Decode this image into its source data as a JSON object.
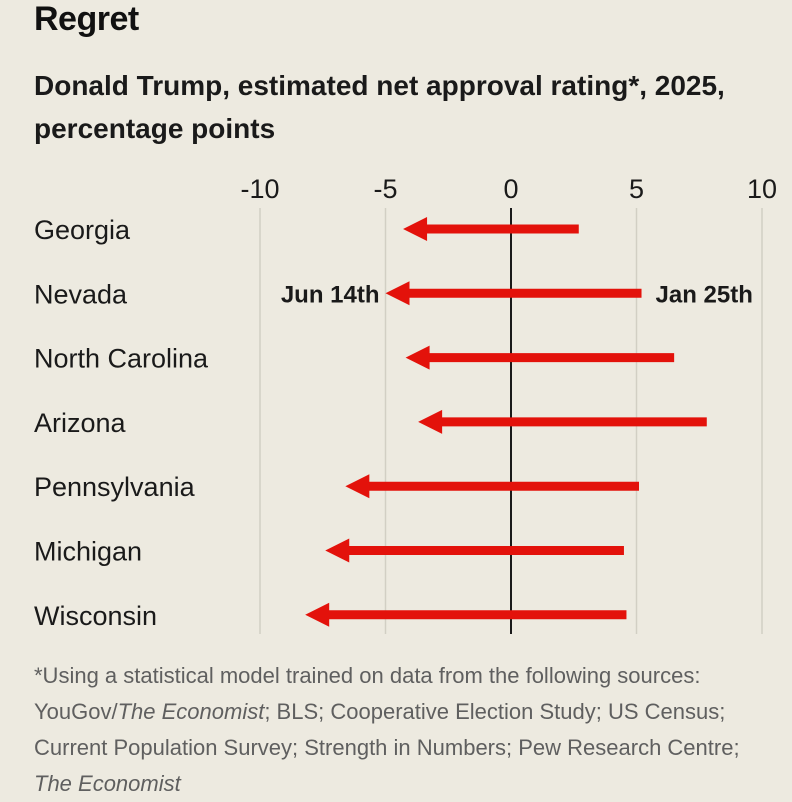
{
  "title": "Regret",
  "subtitle": "Donald Trump, estimated net approval rating*, 2025, percentage points",
  "footnote": {
    "part1": "*Using a statistical model trained on data from the following sources: YouGov/",
    "italic1": "The Economist",
    "part2": "; BLS; Cooperative Election Study; US Census; Current Population Survey; Strength in Numbers; Pew Research Centre; ",
    "italic2": "The Economist"
  },
  "colors": {
    "arrow": "#e3120b",
    "grid": "#d2cfc4",
    "axis": "#1a1a1a",
    "background": "#edeae0"
  },
  "chart_data": {
    "type": "arrow",
    "xlim": [
      -10,
      10
    ],
    "xticks": [
      -10,
      -5,
      0,
      5,
      10
    ],
    "tick_labels": [
      "-10",
      "-5",
      "0",
      "5",
      "10"
    ],
    "grid": true,
    "start_label": "Jan 25th",
    "end_label": "Jun 14th",
    "categories": [
      "Georgia",
      "Nevada",
      "North Carolina",
      "Arizona",
      "Pennsylvania",
      "Michigan",
      "Wisconsin"
    ],
    "series": [
      {
        "name": "Jan 25th",
        "values": [
          2.7,
          5.2,
          6.5,
          7.8,
          5.1,
          4.5,
          4.6
        ]
      },
      {
        "name": "Jun 14th",
        "values": [
          -4.3,
          -5.0,
          -4.2,
          -3.7,
          -6.6,
          -7.4,
          -8.2
        ]
      }
    ]
  }
}
